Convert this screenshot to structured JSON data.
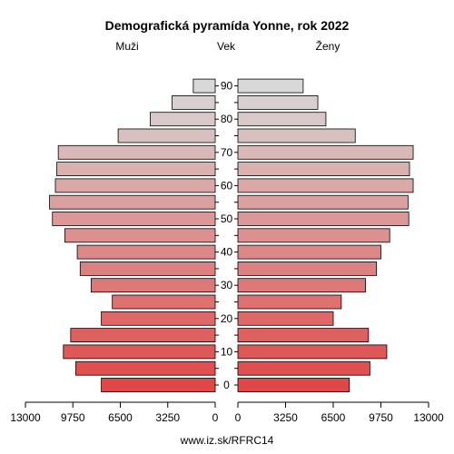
{
  "chart_data": {
    "type": "bar",
    "title": "Demografická pyramída Yonne, rok 2022",
    "left_label": "Muži",
    "center_label": "Vek",
    "right_label": "Ženy",
    "source": "www.iz.sk/RFRC14",
    "age_ticks": [
      "0",
      "10",
      "20",
      "30",
      "40",
      "50",
      "60",
      "70",
      "80",
      "90"
    ],
    "x_ticks_left": [
      "13000",
      "9750",
      "6500",
      "3250",
      "0"
    ],
    "x_ticks_right": [
      "0",
      "3250",
      "6500",
      "9750",
      "13000"
    ],
    "xlim": [
      0,
      13000
    ],
    "categories": [
      "0",
      "5",
      "10",
      "15",
      "20",
      "25",
      "30",
      "35",
      "40",
      "45",
      "50",
      "55",
      "60",
      "65",
      "70",
      "75",
      "80",
      "85",
      "90"
    ],
    "series": [
      {
        "name": "Muži",
        "values": [
          7800,
          9550,
          10400,
          9900,
          7800,
          7050,
          8500,
          9250,
          9450,
          10300,
          11150,
          11350,
          10950,
          10850,
          10750,
          6650,
          4450,
          2950,
          1500
        ]
      },
      {
        "name": "Ženy",
        "values": [
          7600,
          9000,
          10150,
          8900,
          6500,
          7050,
          8700,
          9450,
          9750,
          10350,
          11650,
          11600,
          11950,
          11700,
          11950,
          8000,
          6000,
          5450,
          4450
        ]
      }
    ],
    "color_bottom": "#e04848",
    "color_top": "#d8d8d8"
  }
}
